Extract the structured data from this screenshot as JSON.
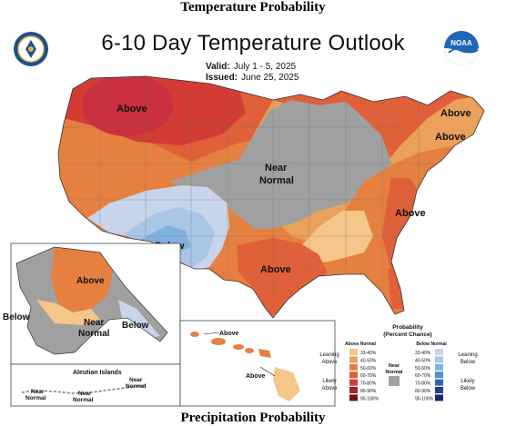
{
  "page": {
    "heading": "Temperature Probability",
    "next_heading": "Precipitation Probability"
  },
  "map": {
    "title": "6-10 Day Temperature Outlook",
    "valid_label": "Valid:",
    "valid_value": "July 1 - 5, 2025",
    "issued_label": "Issued:",
    "issued_value": "June 25, 2025"
  },
  "conus_labels": [
    {
      "name": "northwest",
      "text": "Above"
    },
    {
      "name": "new-england",
      "text": "Above"
    },
    {
      "name": "mid-atlantic",
      "text": "Above"
    },
    {
      "name": "central-near-normal-1",
      "text": "Near"
    },
    {
      "name": "central-near-normal-2",
      "text": "Normal"
    },
    {
      "name": "southeast",
      "text": "Above"
    },
    {
      "name": "southern-plains",
      "text": "Below"
    },
    {
      "name": "gulf-coast",
      "text": "Above"
    }
  ],
  "alaska": {
    "labels": [
      "Above",
      "Below",
      "Near",
      "Normal",
      "Below"
    ],
    "aleutian_title": "Aleutian Islands",
    "aleutian_labels": [
      "Near",
      "Normal",
      "Near",
      "Normal",
      "Near",
      "Normal"
    ]
  },
  "hawaii": {
    "labels": [
      "Above",
      "Above"
    ]
  },
  "legend": {
    "title_line1": "Probability",
    "title_line2": "(Percent Chance)",
    "above_header": "Above Normal",
    "below_header": "Below Normal",
    "near_label_1": "Near",
    "near_label_2": "Normal",
    "leaning_above": [
      "Leaning",
      "Above"
    ],
    "likely_above": [
      "Likely",
      "Above"
    ],
    "leaning_below": [
      "Leaning",
      "Below"
    ],
    "likely_below": [
      "Likely",
      "Below"
    ],
    "ranges": [
      "33-40%",
      "40-50%",
      "50-60%",
      "60-70%",
      "70-80%",
      "80-90%",
      "90-100%"
    ],
    "above_colors": [
      "#f5c68a",
      "#eba05b",
      "#e58041",
      "#e0603a",
      "#d23c34",
      "#a91f2a",
      "#6e1319"
    ],
    "below_colors": [
      "#c7d4ea",
      "#a8c6e6",
      "#80b1dd",
      "#4f8ecf",
      "#2e64b3",
      "#1d3f8c",
      "#162a66"
    ],
    "near_color": "#a0a0a0"
  },
  "colors": {
    "above_33": "#f5c68a",
    "above_40": "#eba05b",
    "above_50": "#e58041",
    "above_60": "#e0603a",
    "above_70": "#d23c34",
    "above_80": "#c93040",
    "near": "#a0a0a0",
    "below_33": "#c7d4ea",
    "below_40": "#a8c6e6",
    "below_50": "#80b1dd"
  },
  "logos": {
    "left": "doc-seal-icon",
    "right": "noaa-logo-icon",
    "right_text": "NOAA"
  }
}
